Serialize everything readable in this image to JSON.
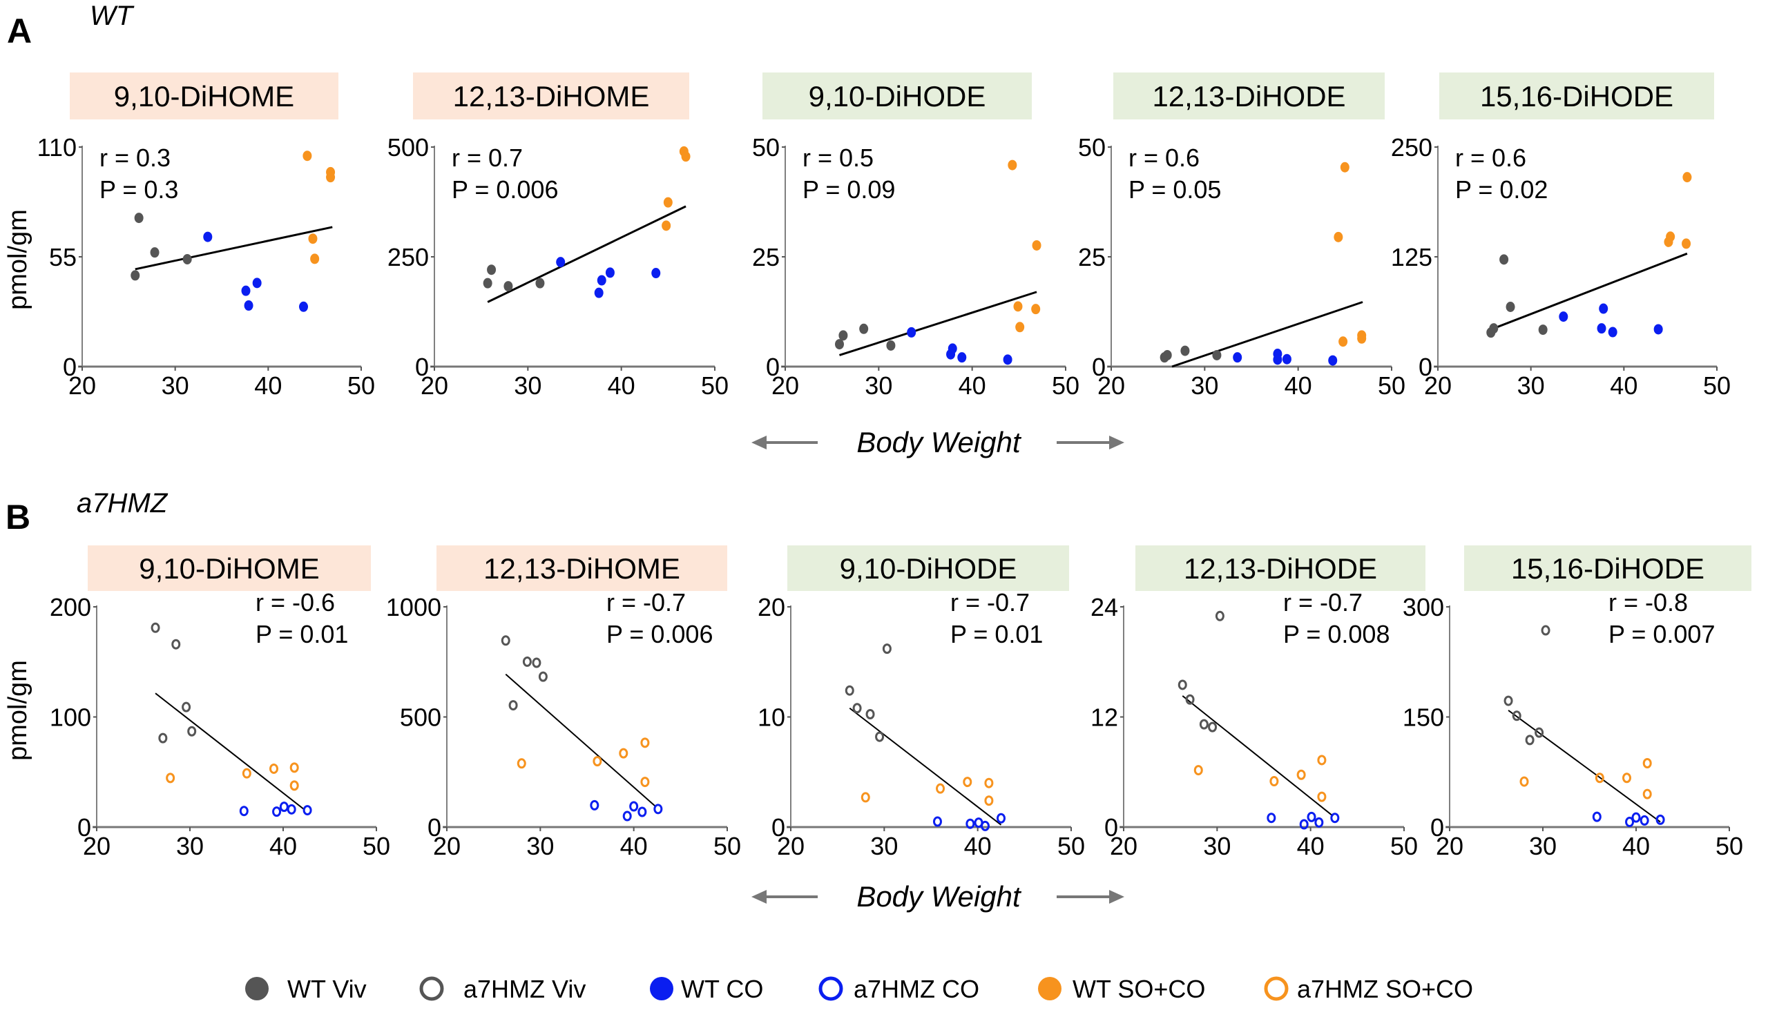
{
  "rows": [
    {
      "letter": "A",
      "genotype": "WT",
      "xlabel": "Body Weight",
      "ylabel": "pmol/gm"
    },
    {
      "letter": "B",
      "genotype": "a7HMZ",
      "xlabel": "Body Weight",
      "ylabel": "pmol/gm"
    }
  ],
  "colors": {
    "viv": "#555555",
    "co": "#0a1ef0",
    "soco": "#f7931e",
    "diHOME_bg": "#fde6d8",
    "diHODE_bg": "#e6efdc"
  },
  "legend": [
    {
      "label": "WT Viv",
      "group": "viv",
      "fill": "filled"
    },
    {
      "label": "a7HMZ Viv",
      "group": "viv",
      "fill": "open"
    },
    {
      "label": "WT CO",
      "group": "co",
      "fill": "filled"
    },
    {
      "label": "a7HMZ CO",
      "group": "co",
      "fill": "open"
    },
    {
      "label": "WT SO+CO",
      "group": "soco",
      "fill": "filled"
    },
    {
      "label": "a7HMZ SO+CO",
      "group": "soco",
      "fill": "open"
    }
  ],
  "chart_data": [
    {
      "type": "scatter",
      "row": 0,
      "title": "9,10-DiHOME",
      "title_class": "diHOME",
      "marker": "filled",
      "xlim": [
        20,
        50
      ],
      "xticks": [
        20,
        30,
        40,
        50
      ],
      "ylim": [
        0,
        110
      ],
      "yticks": [
        0,
        55,
        110
      ],
      "r": "r =  0.3",
      "p": "P = 0.3",
      "series": {
        "viv": [
          [
            26.1,
            74.5
          ],
          [
            27.8,
            57.2
          ],
          [
            31.3,
            53.8
          ],
          [
            25.7,
            45.7
          ]
        ],
        "co": [
          [
            33.5,
            65
          ],
          [
            38.8,
            41.9
          ],
          [
            37.6,
            38
          ],
          [
            37.9,
            30.6
          ],
          [
            43.8,
            30
          ]
        ],
        "soco": [
          [
            44.2,
            105.6
          ],
          [
            46.7,
            97.4
          ],
          [
            46.7,
            94.9
          ],
          [
            44.8,
            64.1
          ],
          [
            45,
            54
          ]
        ]
      },
      "fit": [
        [
          25.7,
          48.8
        ],
        [
          46.9,
          69.9
        ]
      ]
    },
    {
      "type": "scatter",
      "row": 0,
      "title": "12,13-DiHOME",
      "title_class": "diHOME",
      "marker": "filled",
      "xlim": [
        20,
        50
      ],
      "xticks": [
        20,
        30,
        40,
        50
      ],
      "ylim": [
        0,
        500
      ],
      "yticks": [
        0,
        250,
        500
      ],
      "r": "r =  0.7",
      "p": "P = 0.006",
      "series": {
        "viv": [
          [
            26.1,
            220.6
          ],
          [
            25.7,
            190
          ],
          [
            27.9,
            183
          ],
          [
            31.3,
            190
          ]
        ],
        "co": [
          [
            33.5,
            238
          ],
          [
            38.8,
            214
          ],
          [
            37.9,
            196.5
          ],
          [
            37.6,
            168
          ],
          [
            43.7,
            213
          ]
        ],
        "soco": [
          [
            46.7,
            490
          ],
          [
            46.9,
            478.5
          ],
          [
            45,
            374
          ],
          [
            44.8,
            321
          ]
        ]
      },
      "fit": [
        [
          25.7,
          147
        ],
        [
          46.9,
          365
        ]
      ]
    },
    {
      "type": "scatter",
      "row": 0,
      "title": "9,10-DiHODE",
      "title_class": "diHODE",
      "marker": "filled",
      "xlim": [
        20,
        50
      ],
      "xticks": [
        20,
        30,
        40,
        50
      ],
      "ylim": [
        0,
        50
      ],
      "yticks": [
        0,
        25,
        50
      ],
      "r": "r =  0.5",
      "p": "P = 0.09",
      "series": {
        "viv": [
          [
            25.8,
            5.1
          ],
          [
            26.2,
            7.1
          ],
          [
            28.4,
            8.6
          ],
          [
            31.3,
            4.8
          ]
        ],
        "co": [
          [
            33.5,
            7.8
          ],
          [
            37.9,
            4.1
          ],
          [
            37.7,
            2.8
          ],
          [
            38.9,
            2.1
          ],
          [
            43.8,
            1.6
          ]
        ],
        "soco": [
          [
            44.3,
            45.9
          ],
          [
            46.9,
            27.6
          ],
          [
            44.9,
            13.7
          ],
          [
            46.8,
            13.1
          ],
          [
            45.1,
            9.0
          ]
        ]
      },
      "fit": [
        [
          25.8,
          2.6
        ],
        [
          46.9,
          17.0
        ]
      ]
    },
    {
      "type": "scatter",
      "row": 0,
      "title": "12,13-DiHODE",
      "title_class": "diHODE",
      "marker": "filled",
      "xlim": [
        20,
        50
      ],
      "xticks": [
        20,
        30,
        40,
        50
      ],
      "ylim": [
        0,
        50
      ],
      "yticks": [
        0,
        25,
        50
      ],
      "r": "r =  0.6",
      "p": "P = 0.05",
      "series": {
        "viv": [
          [
            25.7,
            2.1
          ],
          [
            26.0,
            2.6
          ],
          [
            27.9,
            3.6
          ],
          [
            31.3,
            2.6
          ]
        ],
        "co": [
          [
            33.5,
            2.1
          ],
          [
            37.8,
            2.9
          ],
          [
            37.8,
            1.6
          ],
          [
            38.8,
            1.7
          ],
          [
            43.7,
            1.4
          ]
        ],
        "soco": [
          [
            45.0,
            45.4
          ],
          [
            44.3,
            29.5
          ],
          [
            46.8,
            7.1
          ],
          [
            46.8,
            6.4
          ],
          [
            44.8,
            5.7
          ]
        ]
      },
      "fit": [
        [
          26.5,
          0
        ],
        [
          46.9,
          14.7
        ]
      ]
    },
    {
      "type": "scatter",
      "row": 0,
      "title": "15,16-DiHODE",
      "title_class": "diHODE",
      "marker": "filled",
      "xlim": [
        20,
        50
      ],
      "xticks": [
        20,
        30,
        40,
        50
      ],
      "ylim": [
        0,
        250
      ],
      "yticks": [
        0,
        125,
        250
      ],
      "r": "r =  0.6",
      "p": "P = 0.02",
      "series": {
        "viv": [
          [
            25.7,
            38.8
          ],
          [
            26.0,
            43.5
          ],
          [
            27.1,
            122
          ],
          [
            27.8,
            68
          ],
          [
            31.3,
            42
          ]
        ],
        "co": [
          [
            33.5,
            56.9
          ],
          [
            37.8,
            66
          ],
          [
            37.6,
            43.5
          ],
          [
            38.8,
            39.3
          ],
          [
            43.7,
            42.5
          ]
        ],
        "soco": [
          [
            46.8,
            215.7
          ],
          [
            45.0,
            148
          ],
          [
            44.8,
            142
          ],
          [
            46.7,
            140
          ]
        ]
      },
      "fit": [
        [
          26.0,
          43.5
        ],
        [
          46.8,
          128.7
        ]
      ]
    },
    {
      "type": "scatter",
      "row": 1,
      "title": "9,10-DiHOME",
      "title_class": "diHOME",
      "marker": "open",
      "xlim": [
        20,
        50
      ],
      "xticks": [
        20,
        30,
        40,
        50
      ],
      "ylim": [
        0,
        200
      ],
      "yticks": [
        0,
        100,
        200
      ],
      "r": "r =  -0.6",
      "p": "P = 0.01",
      "series": {
        "viv": [
          [
            26.3,
            181
          ],
          [
            28.5,
            166
          ],
          [
            29.6,
            109
          ],
          [
            30.2,
            87
          ],
          [
            27.1,
            80.8
          ]
        ],
        "co": [
          [
            35.8,
            14.6
          ],
          [
            39.3,
            14
          ],
          [
            40.1,
            18.4
          ],
          [
            40.9,
            16.1
          ],
          [
            42.6,
            15.3
          ]
        ],
        "soco": [
          [
            27.9,
            44.6
          ],
          [
            36.1,
            48.8
          ],
          [
            39.0,
            53
          ],
          [
            41.2,
            54
          ],
          [
            41.2,
            37.7
          ]
        ]
      },
      "fit": [
        [
          26.3,
          121.5
        ],
        [
          42.3,
          15.7
        ]
      ]
    },
    {
      "type": "scatter",
      "row": 1,
      "title": "12,13-DiHOME",
      "title_class": "diHOME",
      "marker": "open",
      "xlim": [
        20,
        50
      ],
      "xticks": [
        20,
        30,
        40,
        50
      ],
      "ylim": [
        0,
        1000
      ],
      "yticks": [
        0,
        500,
        1000
      ],
      "r": "r =  -0.7",
      "p": "P = 0.006",
      "series": {
        "viv": [
          [
            26.3,
            847
          ],
          [
            28.6,
            751
          ],
          [
            29.6,
            746
          ],
          [
            30.3,
            683
          ],
          [
            27.1,
            553
          ]
        ],
        "co": [
          [
            35.8,
            99
          ],
          [
            39.3,
            50
          ],
          [
            40.0,
            94
          ],
          [
            40.9,
            69
          ],
          [
            42.6,
            82
          ]
        ],
        "soco": [
          [
            28.0,
            289
          ],
          [
            36.1,
            299
          ],
          [
            38.9,
            335
          ],
          [
            41.2,
            383
          ],
          [
            41.2,
            205
          ]
        ]
      },
      "fit": [
        [
          26.3,
          694
        ],
        [
          42.3,
          95
        ]
      ]
    },
    {
      "type": "scatter",
      "row": 1,
      "title": "9,10-DiHODE",
      "title_class": "diHODE",
      "marker": "open",
      "xlim": [
        20,
        50
      ],
      "xticks": [
        20,
        30,
        40,
        50
      ],
      "ylim": [
        0,
        20
      ],
      "yticks": [
        0,
        10,
        20
      ],
      "r": "r =  -0.7",
      "p": "P = 0.01",
      "series": {
        "viv": [
          [
            26.3,
            12.4
          ],
          [
            27.1,
            10.8
          ],
          [
            28.5,
            10.25
          ],
          [
            29.5,
            8.2
          ],
          [
            30.3,
            16.2
          ]
        ],
        "co": [
          [
            35.7,
            0.5
          ],
          [
            39.2,
            0.3
          ],
          [
            40.1,
            0.4
          ],
          [
            40.8,
            0.1
          ],
          [
            42.5,
            0.8
          ]
        ],
        "soco": [
          [
            28.0,
            2.7
          ],
          [
            36.0,
            3.5
          ],
          [
            38.9,
            4.1
          ],
          [
            41.2,
            4.0
          ],
          [
            41.2,
            2.4
          ]
        ]
      },
      "fit": [
        [
          26.3,
          10.8
        ],
        [
          42.5,
          0.2
        ]
      ]
    },
    {
      "type": "scatter",
      "row": 1,
      "title": "12,13-DiHODE",
      "title_class": "diHODE",
      "marker": "open",
      "xlim": [
        20,
        50
      ],
      "xticks": [
        20,
        30,
        40,
        50
      ],
      "ylim": [
        0,
        24
      ],
      "yticks": [
        0,
        12,
        24
      ],
      "r": "r =  -0.7",
      "p": "P = 0.008",
      "series": {
        "viv": [
          [
            30.3,
            23.0
          ],
          [
            26.3,
            15.5
          ],
          [
            27.1,
            13.9
          ],
          [
            28.6,
            11.2
          ],
          [
            29.5,
            10.9
          ]
        ],
        "co": [
          [
            35.8,
            1.0
          ],
          [
            39.3,
            0.3
          ],
          [
            40.1,
            1.1
          ],
          [
            40.9,
            0.5
          ],
          [
            42.6,
            1.0
          ]
        ],
        "soco": [
          [
            28.0,
            6.2
          ],
          [
            36.1,
            5.0
          ],
          [
            39.0,
            5.7
          ],
          [
            41.2,
            7.3
          ],
          [
            41.2,
            3.3
          ]
        ]
      },
      "fit": [
        [
          26.3,
          14.3
        ],
        [
          42.4,
          1.2
        ]
      ]
    },
    {
      "type": "scatter",
      "row": 1,
      "title": "15,16-DiHODE",
      "title_class": "diHODE",
      "marker": "open",
      "xlim": [
        20,
        50
      ],
      "xticks": [
        20,
        30,
        40,
        50
      ],
      "ylim": [
        0,
        300
      ],
      "yticks": [
        0,
        150,
        300
      ],
      "r": "r =  -0.8",
      "p": "P = 0.007",
      "series": {
        "viv": [
          [
            30.3,
            268
          ],
          [
            26.3,
            172
          ],
          [
            27.2,
            151.6
          ],
          [
            28.6,
            118.6
          ],
          [
            29.6,
            128.7
          ]
        ],
        "co": [
          [
            35.8,
            14
          ],
          [
            39.3,
            7
          ],
          [
            40.0,
            13
          ],
          [
            40.9,
            9
          ],
          [
            42.6,
            10
          ]
        ],
        "soco": [
          [
            28.0,
            62
          ],
          [
            36.1,
            67
          ],
          [
            39.0,
            67
          ],
          [
            41.2,
            87
          ],
          [
            41.2,
            45
          ]
        ]
      },
      "fit": [
        [
          26.3,
          159
        ],
        [
          42.6,
          7
        ]
      ]
    }
  ]
}
